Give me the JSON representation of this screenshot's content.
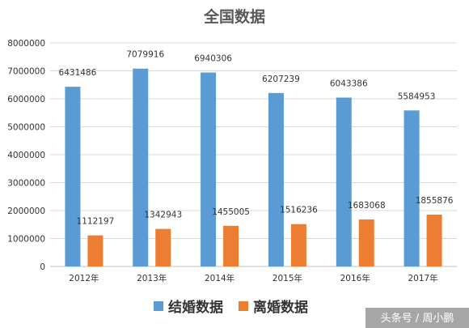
{
  "chart_data": {
    "type": "bar",
    "title": "全国数据",
    "categories": [
      "2012年",
      "2013年",
      "2014年",
      "2015年",
      "2016年",
      "2017年"
    ],
    "series": [
      {
        "name": "结婚数据",
        "color": "#5b9bd5",
        "values": [
          6431486,
          7079916,
          6940306,
          6207239,
          6043386,
          5584953
        ]
      },
      {
        "name": "离婚数据",
        "color": "#ed7d31",
        "values": [
          1112197,
          1342943,
          1455005,
          1516236,
          1683068,
          1855876
        ]
      }
    ],
    "y_ticks": [
      "0",
      "1000000",
      "2000000",
      "3000000",
      "4000000",
      "5000000",
      "6000000",
      "7000000",
      "8000000"
    ],
    "ylim": [
      0,
      8000000
    ],
    "grid": true,
    "legend_position": "bottom"
  },
  "watermark": "头条号 / 周小鹏"
}
